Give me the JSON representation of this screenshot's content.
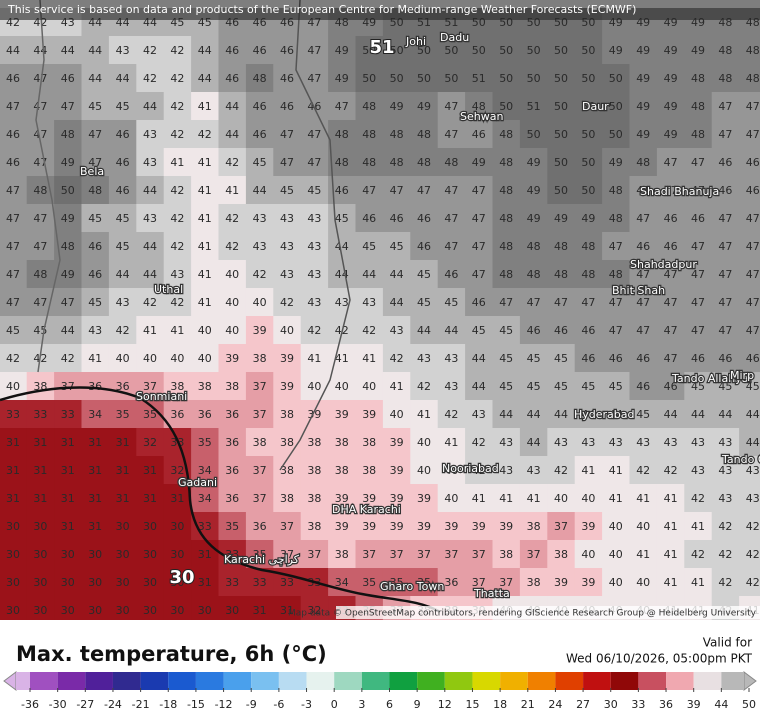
{
  "header": {
    "attribution": "This service is based on data and products of the European Centre for Medium-range Weather Forecasts (ECMWF)"
  },
  "map": {
    "grid": [
      [
        42,
        42,
        43,
        44,
        44,
        44,
        45,
        45,
        46,
        46,
        46,
        47,
        48,
        49,
        50,
        51,
        51,
        50,
        50,
        50,
        50,
        50,
        49,
        49,
        49,
        49,
        48,
        48
      ],
      [
        44,
        44,
        44,
        44,
        43,
        42,
        42,
        44,
        46,
        46,
        46,
        47,
        49,
        50,
        50,
        50,
        50,
        50,
        50,
        50,
        50,
        50,
        49,
        49,
        49,
        49,
        48,
        48
      ],
      [
        46,
        47,
        46,
        44,
        44,
        42,
        42,
        44,
        46,
        48,
        46,
        47,
        49,
        50,
        50,
        50,
        50,
        51,
        50,
        50,
        50,
        50,
        50,
        49,
        49,
        48,
        48,
        48
      ],
      [
        47,
        47,
        47,
        45,
        45,
        44,
        42,
        41,
        44,
        46,
        46,
        46,
        47,
        48,
        49,
        49,
        47,
        48,
        50,
        51,
        50,
        50,
        50,
        49,
        49,
        48,
        47,
        47
      ],
      [
        46,
        47,
        48,
        47,
        46,
        43,
        42,
        42,
        44,
        46,
        47,
        47,
        48,
        48,
        48,
        48,
        47,
        46,
        48,
        50,
        50,
        50,
        50,
        49,
        49,
        48,
        47,
        47
      ],
      [
        46,
        47,
        49,
        47,
        46,
        43,
        41,
        41,
        42,
        45,
        47,
        47,
        48,
        48,
        48,
        48,
        48,
        49,
        48,
        49,
        50,
        50,
        49,
        48,
        47,
        47,
        46,
        46
      ],
      [
        47,
        48,
        50,
        48,
        46,
        44,
        42,
        41,
        41,
        44,
        45,
        45,
        46,
        47,
        47,
        47,
        47,
        47,
        48,
        49,
        50,
        50,
        48,
        47,
        47,
        47,
        46,
        46
      ],
      [
        47,
        47,
        49,
        45,
        45,
        43,
        42,
        41,
        42,
        43,
        43,
        43,
        45,
        46,
        46,
        46,
        47,
        47,
        48,
        49,
        49,
        49,
        48,
        47,
        46,
        46,
        47,
        47
      ],
      [
        47,
        47,
        48,
        46,
        45,
        44,
        42,
        41,
        42,
        43,
        43,
        43,
        44,
        45,
        45,
        46,
        47,
        47,
        48,
        48,
        48,
        48,
        47,
        46,
        46,
        47,
        47,
        47
      ],
      [
        47,
        48,
        49,
        46,
        44,
        44,
        43,
        41,
        40,
        42,
        43,
        43,
        44,
        44,
        44,
        45,
        46,
        47,
        48,
        48,
        48,
        48,
        48,
        47,
        47,
        47,
        47,
        47
      ],
      [
        47,
        47,
        47,
        45,
        43,
        42,
        42,
        41,
        40,
        40,
        42,
        43,
        43,
        43,
        44,
        45,
        45,
        46,
        47,
        47,
        47,
        47,
        47,
        47,
        47,
        47,
        47,
        47
      ],
      [
        45,
        45,
        44,
        43,
        42,
        41,
        41,
        40,
        40,
        39,
        40,
        42,
        42,
        42,
        43,
        44,
        44,
        45,
        45,
        46,
        46,
        46,
        47,
        47,
        47,
        47,
        47,
        47
      ],
      [
        42,
        42,
        42,
        41,
        40,
        40,
        40,
        40,
        39,
        38,
        39,
        41,
        41,
        41,
        42,
        43,
        43,
        44,
        45,
        45,
        45,
        46,
        46,
        46,
        47,
        46,
        46,
        46
      ],
      [
        40,
        38,
        37,
        36,
        36,
        37,
        38,
        38,
        38,
        37,
        39,
        40,
        40,
        40,
        41,
        42,
        43,
        44,
        45,
        45,
        45,
        45,
        45,
        46,
        46,
        45,
        45,
        45
      ],
      [
        33,
        33,
        33,
        34,
        35,
        35,
        36,
        36,
        36,
        37,
        38,
        39,
        39,
        39,
        40,
        41,
        42,
        43,
        44,
        44,
        44,
        44,
        44,
        45,
        44,
        44,
        44,
        44
      ],
      [
        31,
        31,
        31,
        31,
        31,
        32,
        33,
        35,
        36,
        38,
        38,
        38,
        38,
        38,
        39,
        40,
        41,
        42,
        43,
        44,
        43,
        43,
        43,
        43,
        43,
        43,
        43,
        44
      ],
      [
        31,
        31,
        31,
        31,
        31,
        31,
        32,
        34,
        36,
        37,
        38,
        38,
        38,
        38,
        39,
        40,
        40,
        42,
        43,
        43,
        42,
        41,
        41,
        42,
        42,
        43,
        43,
        43
      ],
      [
        31,
        31,
        31,
        31,
        31,
        31,
        31,
        34,
        36,
        37,
        38,
        38,
        39,
        39,
        39,
        39,
        40,
        41,
        41,
        41,
        40,
        40,
        41,
        41,
        41,
        42,
        43,
        43
      ],
      [
        30,
        30,
        31,
        31,
        30,
        30,
        30,
        33,
        35,
        36,
        37,
        38,
        39,
        39,
        39,
        39,
        39,
        39,
        39,
        38,
        37,
        39,
        40,
        40,
        41,
        41,
        42,
        42
      ],
      [
        30,
        30,
        30,
        30,
        30,
        30,
        30,
        31,
        33,
        35,
        37,
        37,
        38,
        37,
        37,
        37,
        37,
        37,
        38,
        37,
        38,
        40,
        40,
        41,
        41,
        42,
        42,
        42
      ],
      [
        30,
        30,
        30,
        30,
        30,
        30,
        30,
        31,
        33,
        33,
        33,
        33,
        34,
        35,
        35,
        35,
        36,
        37,
        37,
        38,
        39,
        39,
        40,
        40,
        41,
        41,
        42,
        42
      ],
      [
        30,
        30,
        30,
        30,
        30,
        30,
        30,
        30,
        30,
        31,
        31,
        32,
        33,
        35,
        37,
        38,
        38,
        39,
        40,
        40,
        40,
        40,
        40,
        40,
        41,
        41,
        42,
        41
      ]
    ],
    "max_label": 51,
    "min_label": 30,
    "places": [
      "Johi",
      "Dadu",
      "Sehwan",
      "Daur",
      "Bela",
      "Shadi Bhanuja",
      "Shahdadpur",
      "Bhit Shah",
      "Uthal",
      "Sonmiani",
      "Tando Allahyar",
      "Mirp",
      "Hyderabad",
      "Tando Ghulam Ali",
      "Gadani",
      "Nooriabad",
      "DHA Karachi",
      "Karachi کراچی",
      "Gharo Town",
      "Thatta"
    ],
    "attribution": "Map data © OpenStreetMap contributors, rendering GIScience Research Group @ Heidelberg University"
  },
  "footer": {
    "title": "Max. temperature, 6h (°C)",
    "valid_label": "Valid for",
    "valid_time": "Wed 06/10/2026, 05:00pm PKT"
  },
  "legend": {
    "ticks": [
      -36,
      -30,
      -27,
      -24,
      -21,
      -18,
      -15,
      -12,
      -9,
      -6,
      -3,
      0,
      3,
      6,
      9,
      12,
      15,
      18,
      21,
      24,
      27,
      30,
      33,
      36,
      39,
      44,
      50
    ]
  }
}
